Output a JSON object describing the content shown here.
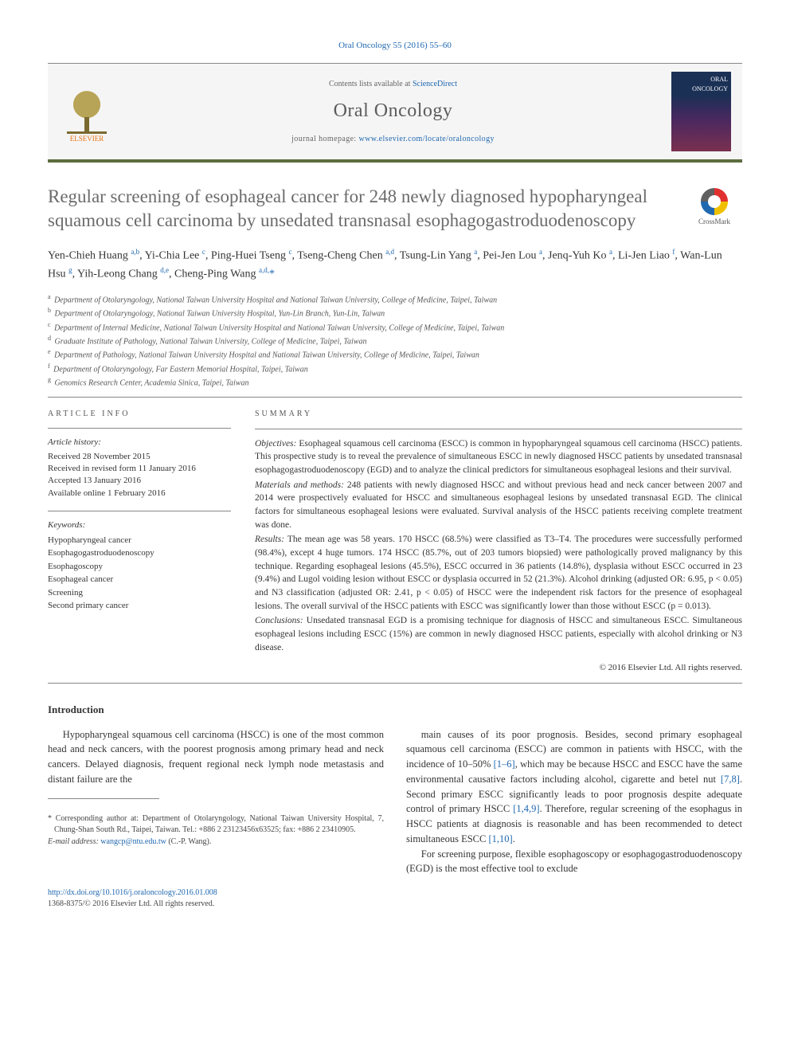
{
  "citation": "Oral Oncology 55 (2016) 55–60",
  "header": {
    "contents_prefix": "Contents lists available at ",
    "contents_link_text": "ScienceDirect",
    "journal_title": "Oral Oncology",
    "homepage_prefix": "journal homepage: ",
    "homepage_url": "www.elsevier.com/locate/oraloncology",
    "elsevier_label": "ELSEVIER",
    "cover_text": "ORAL ONCOLOGY"
  },
  "crossmark_label": "CrossMark",
  "title": "Regular screening of esophageal cancer for 248 newly diagnosed hypopharyngeal squamous cell carcinoma by unsedated transnasal esophagogastroduodenoscopy",
  "authors_html": "Yen-Chieh Huang <sup>a,b</sup>, Yi-Chia Lee <sup>c</sup>, Ping-Huei Tseng <sup>c</sup>, Tseng-Cheng Chen <sup>a,d</sup>, Tsung-Lin Yang <sup>a</sup>, Pei-Jen Lou <sup>a</sup>, Jenq-Yuh Ko <sup>a</sup>, Li-Jen Liao <sup>f</sup>, Wan-Lun Hsu <sup>g</sup>, Yih-Leong Chang <sup>d,e</sup>, Cheng-Ping Wang <sup>a,d,</sup><span class=\"corr\">*</span>",
  "affiliations": [
    {
      "sup": "a",
      "text": "Department of Otolaryngology, National Taiwan University Hospital and National Taiwan University, College of Medicine, Taipei, Taiwan"
    },
    {
      "sup": "b",
      "text": "Department of Otolaryngology, National Taiwan University Hospital, Yun-Lin Branch, Yun-Lin, Taiwan"
    },
    {
      "sup": "c",
      "text": "Department of Internal Medicine, National Taiwan University Hospital and National Taiwan University, College of Medicine, Taipei, Taiwan"
    },
    {
      "sup": "d",
      "text": "Graduate Institute of Pathology, National Taiwan University, College of Medicine, Taipei, Taiwan"
    },
    {
      "sup": "e",
      "text": "Department of Pathology, National Taiwan University Hospital and National Taiwan University, College of Medicine, Taipei, Taiwan"
    },
    {
      "sup": "f",
      "text": "Department of Otolaryngology, Far Eastern Memorial Hospital, Taipei, Taiwan"
    },
    {
      "sup": "g",
      "text": "Genomics Research Center, Academia Sinica, Taipei, Taiwan"
    }
  ],
  "article_info": {
    "heading": "ARTICLE INFO",
    "history_heading": "Article history:",
    "history": [
      "Received 28 November 2015",
      "Received in revised form 11 January 2016",
      "Accepted 13 January 2016",
      "Available online 1 February 2016"
    ],
    "keywords_heading": "Keywords:",
    "keywords": [
      "Hypopharyngeal cancer",
      "Esophagogastroduodenoscopy",
      "Esophagoscopy",
      "Esophageal cancer",
      "Screening",
      "Second primary cancer"
    ]
  },
  "summary": {
    "heading": "SUMMARY",
    "objectives_label": "Objectives:",
    "objectives": " Esophageal squamous cell carcinoma (ESCC) is common in hypopharyngeal squamous cell carcinoma (HSCC) patients. This prospective study is to reveal the prevalence of simultaneous ESCC in newly diagnosed HSCC patients by unsedated transnasal esophagogastroduodenoscopy (EGD) and to analyze the clinical predictors for simultaneous esophageal lesions and their survival.",
    "methods_label": "Materials and methods:",
    "methods": " 248 patients with newly diagnosed HSCC and without previous head and neck cancer between 2007 and 2014 were prospectively evaluated for HSCC and simultaneous esophageal lesions by unsedated transnasal EGD. The clinical factors for simultaneous esophageal lesions were evaluated. Survival analysis of the HSCC patients receiving complete treatment was done.",
    "results_label": "Results:",
    "results": " The mean age was 58 years. 170 HSCC (68.5%) were classified as T3–T4. The procedures were successfully performed (98.4%), except 4 huge tumors. 174 HSCC (85.7%, out of 203 tumors biopsied) were pathologically proved malignancy by this technique. Regarding esophageal lesions (45.5%), ESCC occurred in 36 patients (14.8%), dysplasia without ESCC occurred in 23 (9.4%) and Lugol voiding lesion without ESCC or dysplasia occurred in 52 (21.3%). Alcohol drinking (adjusted OR: 6.95, p < 0.05) and N3 classification (adjusted OR: 2.41, p < 0.05) of HSCC were the independent risk factors for the presence of esophageal lesions. The overall survival of the HSCC patients with ESCC was significantly lower than those without ESCC (p = 0.013).",
    "conclusions_label": "Conclusions:",
    "conclusions": " Unsedated transnasal EGD is a promising technique for diagnosis of HSCC and simultaneous ESCC. Simultaneous esophageal lesions including ESCC (15%) are common in newly diagnosed HSCC patients, especially with alcohol drinking or N3 disease.",
    "copyright": "© 2016 Elsevier Ltd. All rights reserved."
  },
  "intro": {
    "heading": "Introduction",
    "para1": "Hypopharyngeal squamous cell carcinoma (HSCC) is one of the most common head and neck cancers, with the poorest prognosis among primary head and neck cancers. Delayed diagnosis, frequent regional neck lymph node metastasis and distant failure are the",
    "para2_pre": "main causes of its poor prognosis. Besides, second primary esophageal squamous cell carcinoma (ESCC) are common in patients with HSCC, with the incidence of 10–50% ",
    "ref1": "[1–6]",
    "para2_mid1": ", which may be because HSCC and ESCC have the same environmental causative factors including alcohol, cigarette and betel nut ",
    "ref2": "[7,8]",
    "para2_mid2": ". Second primary ESCC significantly leads to poor prognosis despite adequate control of primary HSCC ",
    "ref3": "[1,4,9]",
    "para2_mid3": ". Therefore, regular screening of the esophagus in HSCC patients at diagnosis is reasonable and has been recommended to detect simultaneous ESCC ",
    "ref4": "[1,10]",
    "para2_end": ".",
    "para3": "For screening purpose, flexible esophagoscopy or esophagogastroduodenoscopy (EGD) is the most effective tool to exclude"
  },
  "footnote": {
    "corr": "* Corresponding author at: Department of Otolaryngology, National Taiwan University Hospital, 7, Chung-Shan South Rd., Taipei, Taiwan. Tel.: +886 2 23123456x63525; fax: +886 2 23410905.",
    "email_label": "E-mail address: ",
    "email": "wangcp@ntu.edu.tw",
    "email_suffix": " (C.-P. Wang)."
  },
  "doi": {
    "url": "http://dx.doi.org/10.1016/j.oraloncology.2016.01.008",
    "issn_copyright": "1368-8375/© 2016 Elsevier Ltd. All rights reserved."
  },
  "colors": {
    "link": "#2068b0",
    "band_border": "#5c6d3e",
    "orange": "#e6720f",
    "text": "#343434",
    "gray_title": "#6b6b6b"
  }
}
